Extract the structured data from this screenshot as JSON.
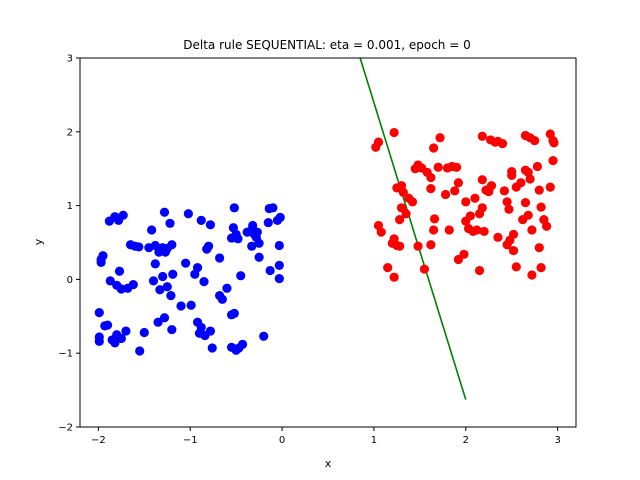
{
  "chart_data": {
    "type": "scatter",
    "title": "Delta rule SEQUENTIAL: eta = 0.001, epoch = 0",
    "xlabel": "x",
    "ylabel": "y",
    "xlim": [
      -2.2,
      3.2
    ],
    "ylim": [
      -2,
      3
    ],
    "xticks": [
      -2,
      -1,
      0,
      1,
      2,
      3
    ],
    "yticks": [
      -2,
      -1,
      0,
      1,
      2,
      3
    ],
    "xtick_labels": [
      "−2",
      "−1",
      "0",
      "1",
      "2",
      "3"
    ],
    "ytick_labels": [
      "−2",
      "−1",
      "0",
      "1",
      "2",
      "3"
    ],
    "grid": false,
    "series": [
      {
        "color": "#0000ff",
        "points": [
          [
            -1.97,
            0.27
          ],
          [
            -1.95,
            0.32
          ],
          [
            -1.97,
            0.23
          ],
          [
            -1.88,
            0.79
          ],
          [
            -1.82,
            0.85
          ],
          [
            -1.78,
            0.8
          ],
          [
            -1.73,
            0.87
          ],
          [
            -1.87,
            -0.02
          ],
          [
            -1.8,
            -0.08
          ],
          [
            -1.77,
            0.11
          ],
          [
            -1.75,
            -0.13
          ],
          [
            -1.68,
            -0.12
          ],
          [
            -1.62,
            -0.07
          ],
          [
            -1.65,
            0.47
          ],
          [
            -1.6,
            0.45
          ],
          [
            -1.56,
            0.44
          ],
          [
            -1.45,
            0.43
          ],
          [
            -1.38,
            0.46
          ],
          [
            -1.34,
            0.37
          ],
          [
            -1.3,
            0.43
          ],
          [
            -1.27,
            0.37
          ],
          [
            -1.25,
            0.42
          ],
          [
            -1.2,
            0.47
          ],
          [
            -1.42,
            0.67
          ],
          [
            -1.28,
            0.91
          ],
          [
            -1.22,
            0.76
          ],
          [
            -1.38,
            0.21
          ],
          [
            -1.3,
            0.04
          ],
          [
            -1.25,
            -0.1
          ],
          [
            -1.21,
            -0.22
          ],
          [
            -1.19,
            0.07
          ],
          [
            -1.33,
            -0.14
          ],
          [
            -1.4,
            -0.02
          ],
          [
            -1.35,
            -0.58
          ],
          [
            -1.28,
            -0.52
          ],
          [
            -1.2,
            -0.68
          ],
          [
            -1.5,
            -0.72
          ],
          [
            -1.55,
            -0.97
          ],
          [
            -1.7,
            -0.7
          ],
          [
            -1.75,
            -0.8
          ],
          [
            -1.8,
            -0.75
          ],
          [
            -1.85,
            -0.82
          ],
          [
            -1.82,
            -0.86
          ],
          [
            -1.9,
            -0.62
          ],
          [
            -1.99,
            -0.45
          ],
          [
            -1.99,
            -0.78
          ],
          [
            -1.99,
            -0.84
          ],
          [
            -1.93,
            -0.63
          ],
          [
            -1.1,
            -0.36
          ],
          [
            -1.05,
            0.22
          ],
          [
            -1.02,
            0.89
          ],
          [
            -0.95,
            0.07
          ],
          [
            -0.92,
            0.16
          ],
          [
            -0.88,
            0.8
          ],
          [
            -0.85,
            -0.03
          ],
          [
            -0.82,
            0.41
          ],
          [
            -0.8,
            0.45
          ],
          [
            -0.78,
            0.74
          ],
          [
            -0.99,
            -0.35
          ],
          [
            -0.92,
            -0.58
          ],
          [
            -0.88,
            -0.65
          ],
          [
            -0.9,
            -0.73
          ],
          [
            -0.84,
            -0.76
          ],
          [
            -0.78,
            -0.7
          ],
          [
            -0.76,
            -0.93
          ],
          [
            -0.68,
            -0.22
          ],
          [
            -0.65,
            -0.27
          ],
          [
            -0.6,
            -0.12
          ],
          [
            -0.55,
            -0.48
          ],
          [
            -0.52,
            -0.46
          ],
          [
            -0.55,
            -0.92
          ],
          [
            -0.5,
            -0.96
          ],
          [
            -0.47,
            -0.93
          ],
          [
            -0.43,
            -0.88
          ],
          [
            -0.2,
            -0.77
          ],
          [
            -0.52,
            0.97
          ],
          [
            -0.53,
            0.7
          ],
          [
            -0.5,
            0.61
          ],
          [
            -0.55,
            0.56
          ],
          [
            -0.48,
            0.55
          ],
          [
            -0.68,
            0.29
          ],
          [
            -0.45,
            0.05
          ],
          [
            -0.38,
            0.64
          ],
          [
            -0.33,
            0.66
          ],
          [
            -0.3,
            0.61
          ],
          [
            -0.28,
            0.57
          ],
          [
            -0.33,
            0.45
          ],
          [
            -0.25,
            0.49
          ],
          [
            -0.32,
            0.73
          ],
          [
            -0.27,
            0.64
          ],
          [
            -0.25,
            0.3
          ],
          [
            -0.15,
            0.77
          ],
          [
            -0.14,
            0.96
          ],
          [
            -0.1,
            0.97
          ],
          [
            -0.05,
            0.8
          ],
          [
            -0.02,
            0.84
          ],
          [
            -0.03,
            0.46
          ],
          [
            -0.13,
            0.12
          ],
          [
            -0.03,
            0.19
          ],
          [
            -0.03,
            0.01
          ],
          [
            -0.3,
            0.61
          ],
          [
            -0.35,
            0.65
          ]
        ]
      },
      {
        "color": "#ff0000",
        "points": [
          [
            1.02,
            1.79
          ],
          [
            1.05,
            1.86
          ],
          [
            1.22,
            1.99
          ],
          [
            1.05,
            0.73
          ],
          [
            1.08,
            0.64
          ],
          [
            1.15,
            0.16
          ],
          [
            1.22,
            0.03
          ],
          [
            1.2,
            0.49
          ],
          [
            1.25,
            0.46
          ],
          [
            1.28,
            0.45
          ],
          [
            1.22,
            0.55
          ],
          [
            1.28,
            0.81
          ],
          [
            1.3,
            0.97
          ],
          [
            1.25,
            1.24
          ],
          [
            1.3,
            1.27
          ],
          [
            1.32,
            1.18
          ],
          [
            1.35,
            0.89
          ],
          [
            1.38,
            1.1
          ],
          [
            1.42,
            1.05
          ],
          [
            1.45,
            1.5
          ],
          [
            1.48,
            1.55
          ],
          [
            1.52,
            1.51
          ],
          [
            1.58,
            1.45
          ],
          [
            1.62,
            1.38
          ],
          [
            1.48,
            0.45
          ],
          [
            1.55,
            0.14
          ],
          [
            1.62,
            0.47
          ],
          [
            1.65,
            0.67
          ],
          [
            1.66,
            0.82
          ],
          [
            1.7,
            1.52
          ],
          [
            1.72,
            1.92
          ],
          [
            1.65,
            1.78
          ],
          [
            1.62,
            1.23
          ],
          [
            1.78,
            1.15
          ],
          [
            1.8,
            1.51
          ],
          [
            1.85,
            1.53
          ],
          [
            1.9,
            1.52
          ],
          [
            1.92,
            1.31
          ],
          [
            1.88,
            1.2
          ],
          [
            1.82,
            0.67
          ],
          [
            1.92,
            0.27
          ],
          [
            1.98,
            0.34
          ],
          [
            2.0,
            0.79
          ],
          [
            2.05,
            0.86
          ],
          [
            2.03,
            0.69
          ],
          [
            2.08,
            0.65
          ],
          [
            2.15,
            0.12
          ],
          [
            2.12,
            0.67
          ],
          [
            2.15,
            0.89
          ],
          [
            2.18,
            0.97
          ],
          [
            2.2,
            0.65
          ],
          [
            2.0,
            1.05
          ],
          [
            2.1,
            1.1
          ],
          [
            2.18,
            1.35
          ],
          [
            2.22,
            1.21
          ],
          [
            2.25,
            1.19
          ],
          [
            2.28,
            1.27
          ],
          [
            2.27,
            1.89
          ],
          [
            2.18,
            1.94
          ],
          [
            2.32,
            1.86
          ],
          [
            2.35,
            1.87
          ],
          [
            2.4,
            1.84
          ],
          [
            2.42,
            1.2
          ],
          [
            2.45,
            1.05
          ],
          [
            2.47,
            0.95
          ],
          [
            2.5,
            1.41
          ],
          [
            2.5,
            1.46
          ],
          [
            2.55,
            1.25
          ],
          [
            2.52,
            0.61
          ],
          [
            2.48,
            0.53
          ],
          [
            2.45,
            0.47
          ],
          [
            2.52,
            0.39
          ],
          [
            2.55,
            0.17
          ],
          [
            2.6,
            1.31
          ],
          [
            2.65,
            1.48
          ],
          [
            2.68,
            1.45
          ],
          [
            2.7,
            1.36
          ],
          [
            2.65,
            1.04
          ],
          [
            2.62,
            0.81
          ],
          [
            2.68,
            0.87
          ],
          [
            2.72,
            0.67
          ],
          [
            2.72,
            0.06
          ],
          [
            2.65,
            1.95
          ],
          [
            2.7,
            1.92
          ],
          [
            2.75,
            1.88
          ],
          [
            2.78,
            1.53
          ],
          [
            2.8,
            1.21
          ],
          [
            2.82,
            0.98
          ],
          [
            2.85,
            0.81
          ],
          [
            2.88,
            0.72
          ],
          [
            2.8,
            0.43
          ],
          [
            2.82,
            0.16
          ],
          [
            2.92,
            1.97
          ],
          [
            2.95,
            1.88
          ],
          [
            2.96,
            1.85
          ],
          [
            2.95,
            1.61
          ],
          [
            2.92,
            1.25
          ],
          [
            2.35,
            0.57
          ]
        ]
      }
    ],
    "line": {
      "color": "#008000",
      "x": [
        0.85,
        2.0
      ],
      "y": [
        3.0,
        -1.63
      ]
    }
  }
}
